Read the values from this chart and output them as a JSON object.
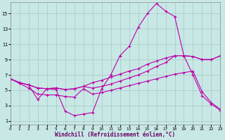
{
  "background_color": "#c8e8e5",
  "grid_color": "#a8c8c5",
  "line_color": "#bb00aa",
  "xlim": [
    0,
    23
  ],
  "ylim": [
    0.5,
    16.5
  ],
  "xlabel": "Windchill (Refroidissement éolien,°C)",
  "xlabel_fontsize": 5.5,
  "ytick_vals": [
    1,
    3,
    5,
    7,
    9,
    11,
    13,
    15
  ],
  "xtick_vals": [
    0,
    1,
    2,
    3,
    4,
    5,
    6,
    7,
    8,
    9,
    10,
    11,
    12,
    13,
    14,
    15,
    16,
    17,
    18,
    19,
    20,
    21,
    22,
    23
  ],
  "line1_x": [
    0,
    1,
    2,
    3,
    4,
    5,
    6,
    7,
    8,
    9,
    10,
    11,
    12,
    13,
    14,
    15,
    16,
    17,
    18,
    19,
    20,
    21,
    22,
    23
  ],
  "line1_y": [
    6.5,
    6.0,
    5.7,
    3.8,
    5.2,
    5.1,
    2.3,
    1.7,
    1.9,
    2.1,
    5.2,
    7.0,
    9.5,
    10.7,
    13.2,
    15.0,
    16.3,
    15.3,
    14.6,
    9.5,
    7.0,
    4.3,
    3.2,
    2.4
  ],
  "line2_x": [
    0,
    1,
    2,
    3,
    4,
    5,
    6,
    7,
    8,
    9,
    10,
    11,
    12,
    13,
    14,
    15,
    16,
    17,
    18,
    19,
    20,
    21,
    22,
    23
  ],
  "line2_y": [
    6.5,
    5.9,
    5.3,
    4.5,
    4.4,
    4.4,
    4.2,
    4.1,
    5.2,
    4.5,
    4.7,
    5.0,
    5.3,
    5.6,
    5.9,
    6.2,
    6.5,
    6.8,
    7.1,
    7.3,
    7.5,
    4.8,
    3.4,
    2.5
  ],
  "line3_x": [
    0,
    1,
    2,
    3,
    4,
    5,
    6,
    7,
    8,
    9,
    10,
    11,
    12,
    13,
    14,
    15,
    16,
    17,
    18,
    19,
    20,
    21,
    22,
    23
  ],
  "line3_y": [
    6.5,
    6.0,
    5.7,
    5.3,
    5.2,
    5.3,
    5.1,
    5.2,
    5.5,
    6.0,
    6.3,
    6.7,
    7.1,
    7.5,
    7.8,
    8.4,
    8.8,
    9.2,
    9.5,
    9.5,
    9.4,
    9.0,
    9.0,
    9.5
  ],
  "line4_x": [
    0,
    1,
    2,
    3,
    4,
    5,
    6,
    7,
    8,
    9,
    10,
    11,
    12,
    13,
    14,
    15,
    16,
    17,
    18,
    19,
    20,
    21,
    22,
    23
  ],
  "line4_y": [
    6.5,
    6.0,
    5.7,
    5.3,
    5.2,
    5.3,
    5.1,
    5.2,
    5.5,
    5.3,
    5.5,
    5.8,
    6.2,
    6.6,
    7.0,
    7.5,
    8.1,
    8.6,
    9.5,
    9.5,
    9.4,
    9.0,
    9.0,
    9.5
  ]
}
